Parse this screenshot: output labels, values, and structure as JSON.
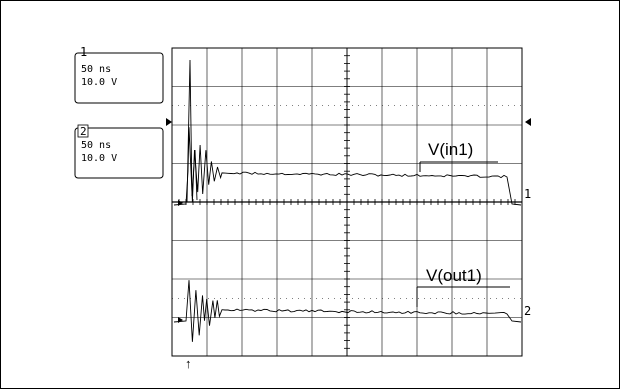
{
  "chart_data": {
    "type": "line",
    "title": "",
    "xlabel": "",
    "ylabel": "",
    "grid": true,
    "channels": [
      {
        "number": "1",
        "time_per_div": "50 ns",
        "volts_per_div": "10.0 V",
        "marker": "1",
        "trace_label": "V(in1)",
        "color": "#000000"
      },
      {
        "number": "2",
        "time_per_div": "50 ns",
        "volts_per_div": "10.0 V",
        "marker": "2",
        "trace_label": "V(out1)",
        "color": "#000000"
      }
    ],
    "x_divisions": 10,
    "y_divisions": 8
  },
  "trigger_marker": "↑"
}
